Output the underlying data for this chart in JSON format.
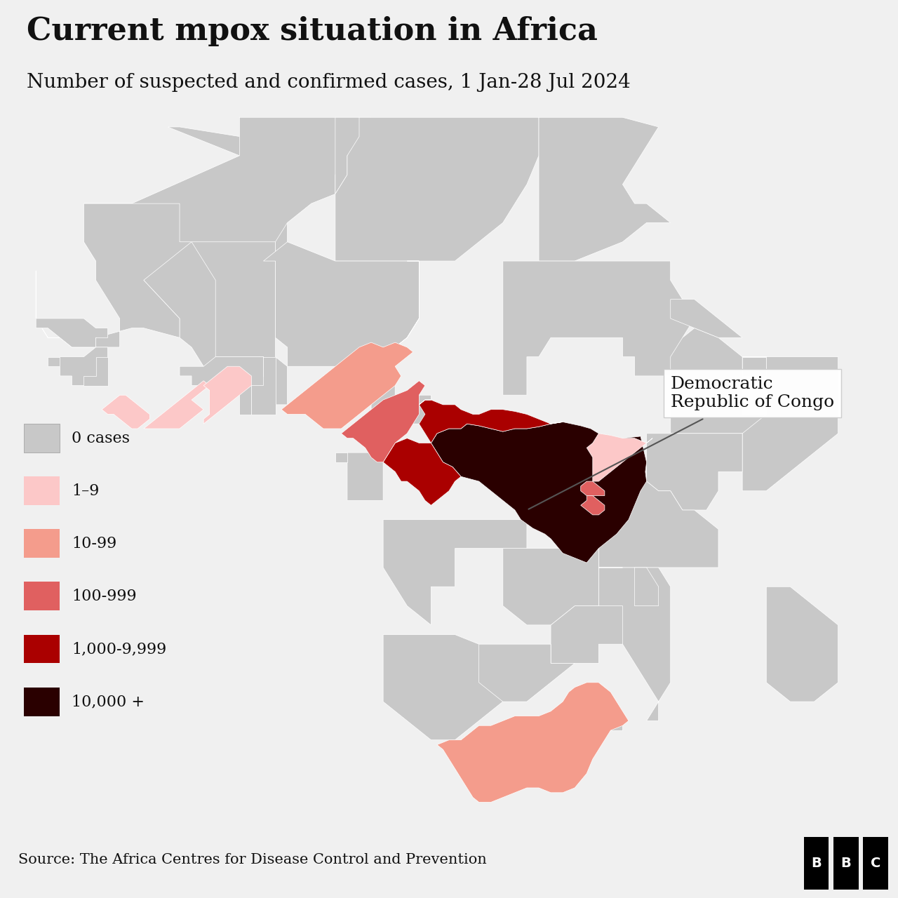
{
  "title": "Current mpox situation in Africa",
  "subtitle": "Number of suspected and confirmed cases, 1 Jan-28 Jul 2024",
  "source": "Source: The Africa Centres for Disease Control and Prevention",
  "background_color": "#f0f0f0",
  "ocean_color": "#a8c4d4",
  "country_default_color": "#c8c8c8",
  "country_border_color": "#ffffff",
  "legend_items": [
    {
      "label": "0 cases",
      "color": "#c8c8c8"
    },
    {
      "label": "1–9",
      "color": "#fcc8c8"
    },
    {
      "label": "10-99",
      "color": "#f49c8c"
    },
    {
      "label": "100-999",
      "color": "#e06060"
    },
    {
      "label": "1,000-9,999",
      "color": "#aa0000"
    },
    {
      "label": "10,000 +",
      "color": "#2a0000"
    }
  ],
  "color_map": {
    "0": "#c8c8c8",
    "1-9": "#fcc8c8",
    "10-99": "#f49c8c",
    "100-999": "#e06060",
    "1000-9999": "#aa0000",
    "10000+": "#2a0000"
  }
}
